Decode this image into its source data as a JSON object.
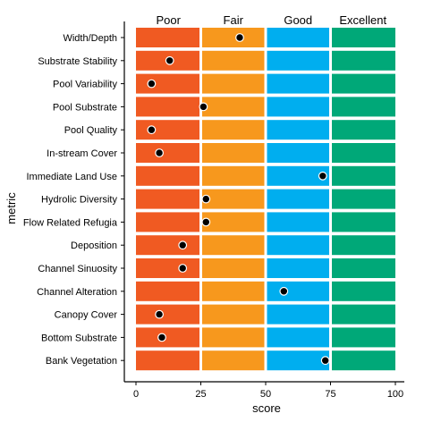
{
  "chart_data": {
    "type": "scatter",
    "xlabel": "score",
    "ylabel": "metric",
    "xlim": [
      0,
      100
    ],
    "x_ticks": [
      0,
      25,
      50,
      75,
      100
    ],
    "bands": [
      {
        "label": "Poor",
        "from": 0,
        "to": 25,
        "color": "#F05A22"
      },
      {
        "label": "Fair",
        "from": 25,
        "to": 50,
        "color": "#F7981D"
      },
      {
        "label": "Good",
        "from": 50,
        "to": 75,
        "color": "#00AEEF"
      },
      {
        "label": "Excellent",
        "from": 75,
        "to": 100,
        "color": "#00A878"
      }
    ],
    "categories": [
      "Width/Depth",
      "Substrate Stability",
      "Pool Variability",
      "Pool Substrate",
      "Pool Quality",
      "In-stream Cover",
      "Immediate Land Use",
      "Hydrolic Diversity",
      "Flow Related Refugia",
      "Deposition",
      "Channel Sinuosity",
      "Channel Alteration",
      "Canopy Cover",
      "Bottom Substrate",
      "Bank Vegetation"
    ],
    "values": [
      40,
      13,
      6,
      26,
      6,
      9,
      72,
      27,
      27,
      18,
      18,
      57,
      9,
      10,
      73
    ],
    "grid": false
  }
}
